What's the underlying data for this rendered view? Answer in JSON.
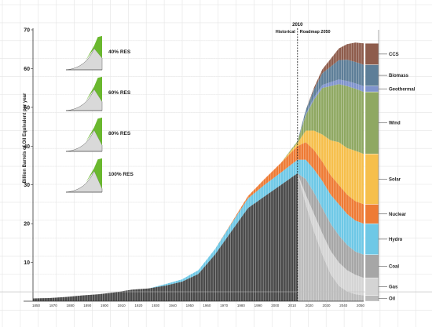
{
  "chart_data": {
    "type": "area",
    "title": "",
    "ylabel": "Billion Barrels of Oil Equivalent per year",
    "xlabel": "",
    "ylim": [
      0,
      70
    ],
    "yticks": [
      10,
      20,
      30,
      40,
      50,
      60,
      70
    ],
    "xlim": [
      1850,
      2050
    ],
    "x_tick_labels": [
      "1850",
      "1870",
      "1880",
      "1890",
      "1900",
      "1910",
      "1920",
      "1930",
      "1940",
      "1950",
      "1960",
      "1970",
      "1980",
      "1990",
      "2000",
      "2010",
      "2020",
      "2030",
      "2040",
      "2050"
    ],
    "divider": {
      "year": 2010,
      "label_top": "2010",
      "label_left": "Historical",
      "label_right": "Roadmap 2050"
    },
    "grid": true,
    "legend_position": "right",
    "years": [
      1850,
      1860,
      1870,
      1880,
      1890,
      1900,
      1910,
      1920,
      1930,
      1940,
      1950,
      1960,
      1970,
      1980,
      1990,
      2000,
      2010,
      2015,
      2020,
      2025,
      2030,
      2035,
      2040,
      2045,
      2050
    ],
    "series": [
      {
        "name": "Oil",
        "color": "#bbbbbb",
        "values": [
          0.7,
          0.8,
          1.1,
          1.5,
          1.8,
          2.3,
          3.0,
          3.3,
          4.0,
          5.0,
          7.0,
          12.0,
          18.0,
          24.0,
          27.0,
          30.0,
          33.0,
          25.0,
          18.0,
          12.0,
          7.0,
          4.0,
          2.5,
          1.8,
          1.5
        ]
      },
      {
        "name": "Gas",
        "color": "#d4d4d4",
        "values": [
          0,
          0,
          0,
          0,
          0,
          0,
          0,
          0,
          0,
          0,
          0,
          0,
          0,
          0,
          0,
          0,
          0,
          2.5,
          4.5,
          5.5,
          6.0,
          6.0,
          5.5,
          5.0,
          4.5
        ]
      },
      {
        "name": "Coal",
        "color": "#a6a6a6",
        "values": [
          0,
          0,
          0,
          0,
          0,
          0,
          0,
          0,
          0,
          0,
          0,
          0,
          0,
          0,
          0,
          0,
          0,
          4.0,
          5.5,
          6.5,
          7.0,
          7.0,
          6.5,
          6.0,
          6.0
        ]
      },
      {
        "name": "Hydro",
        "color": "#6ec8e6",
        "values": [
          0,
          0,
          0,
          0,
          0,
          0,
          0,
          0,
          0.4,
          0.6,
          1.0,
          1.4,
          2.0,
          2.5,
          3.0,
          3.2,
          3.5,
          5.0,
          6.0,
          7.0,
          7.5,
          8.0,
          8.0,
          8.0,
          8.0
        ]
      },
      {
        "name": "Nuclear",
        "color": "#ee7b35",
        "values": [
          0,
          0,
          0,
          0,
          0,
          0,
          0,
          0,
          0,
          0,
          0,
          0,
          0.2,
          0.6,
          1.5,
          2.5,
          3.5,
          4.5,
          5.0,
          5.0,
          5.0,
          5.0,
          5.0,
          5.0,
          5.0
        ]
      },
      {
        "name": "Solar",
        "color": "#f6bf4b",
        "values": [
          0,
          0,
          0,
          0,
          0,
          0,
          0,
          0,
          0,
          0,
          0,
          0,
          0,
          0,
          0,
          0,
          0.8,
          3.0,
          5.0,
          7.0,
          9.0,
          11.0,
          12.0,
          13.0,
          13.0
        ]
      },
      {
        "name": "Wind",
        "color": "#8fa862",
        "values": [
          0,
          0,
          0,
          0,
          0,
          0,
          0,
          0,
          0,
          0,
          0,
          0,
          0,
          0,
          0,
          0,
          0.5,
          4.0,
          8.0,
          12.0,
          14.0,
          15.0,
          16.0,
          16.0,
          16.0
        ]
      },
      {
        "name": "Geothermal",
        "color": "#7f93cc",
        "values": [
          0,
          0,
          0,
          0,
          0,
          0,
          0,
          0,
          0,
          0,
          0,
          0,
          0,
          0,
          0,
          0,
          0,
          0.3,
          0.6,
          0.8,
          1.0,
          1.2,
          1.3,
          1.4,
          1.5
        ]
      },
      {
        "name": "Biomass",
        "color": "#5d7e98",
        "values": [
          0,
          0,
          0,
          0,
          0,
          0,
          0,
          0,
          0,
          0,
          0,
          0,
          0,
          0,
          0,
          0,
          0,
          1.0,
          2.0,
          3.0,
          4.0,
          5.0,
          5.5,
          5.5,
          5.5
        ]
      },
      {
        "name": "CCS",
        "color": "#8e5c4c",
        "values": [
          0,
          0,
          0,
          0,
          0,
          0,
          0,
          0,
          0,
          0,
          0,
          0,
          0,
          0,
          0,
          0,
          0,
          0,
          0.5,
          1.0,
          2.0,
          3.0,
          4.0,
          5.0,
          5.5
        ]
      }
    ],
    "insets": [
      {
        "label": "40% RES"
      },
      {
        "label": "60% RES"
      },
      {
        "label": "80% RES"
      },
      {
        "label": "100% RES"
      }
    ]
  }
}
